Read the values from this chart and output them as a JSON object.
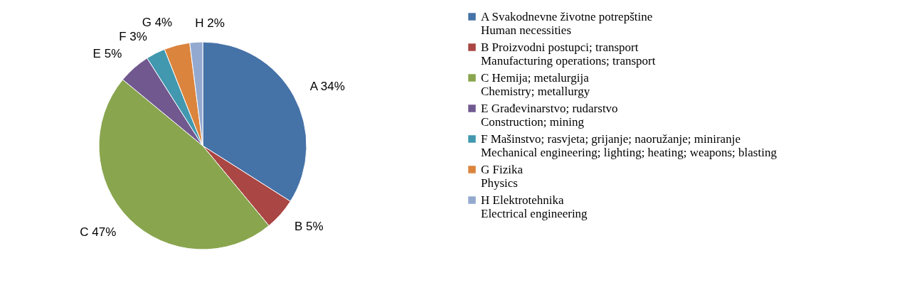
{
  "chart_data": {
    "type": "pie",
    "categories": [
      "A   Svakodnevne životne potrepštine\nHuman necessities",
      "B   Proizvodni postupci; transport\nManufacturing operations; transport",
      "C   Hemija; metalurgija\nChemistry; metallurgy",
      "E   Građevinarstvo; rudarstvo\nConstruction; mining",
      "F   Mašinstvo; rasvjeta; grijanje; naoružanje; miniranje\nMechanical engineering; lighting; heating; weapons; blasting",
      "G   Fizika\nPhysics",
      "H   Elektrotehnika\nElectrical engineering"
    ],
    "values": [
      34,
      5,
      47,
      5,
      3,
      4,
      2
    ],
    "value_labels": [
      "A  34%",
      "B  5%",
      "C  47%",
      "E  5%",
      "F  3%",
      "G  4%",
      "H  2%"
    ],
    "colors": [
      "#4572a7",
      "#aa4643",
      "#89a54e",
      "#71588f",
      "#4198af",
      "#db843d",
      "#93a9cf"
    ],
    "legend": "right"
  }
}
